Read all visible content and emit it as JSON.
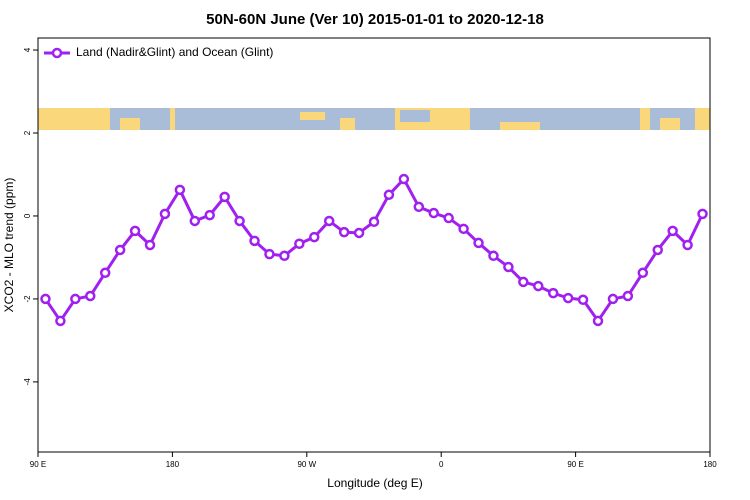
{
  "chart_data": {
    "type": "line",
    "title": "50N-60N June (Ver 10)   2015-01-01 to 2020-12-18",
    "x_label": "Longitude (deg E)",
    "y_label": "XCO2 - MLO trend (ppm)",
    "x": [
      95,
      105,
      115,
      125,
      135,
      145,
      155,
      165,
      175,
      185,
      195,
      205,
      215,
      225,
      235,
      245,
      255,
      265,
      275,
      285,
      295,
      305,
      315,
      325,
      335,
      345,
      355,
      365,
      375,
      385,
      395,
      405,
      415,
      425,
      435,
      445,
      455,
      465,
      475,
      485,
      495,
      505,
      515,
      525,
      535
    ],
    "series": [
      {
        "name": "Land (Nadir&Glint) and Ocean (Glint)",
        "color": "#a020f0",
        "values": [
          -2.0,
          -2.53,
          -2.0,
          -1.93,
          -1.37,
          -0.82,
          -0.36,
          -0.7,
          0.05,
          0.63,
          -0.12,
          0.02,
          0.46,
          -0.12,
          -0.6,
          -0.92,
          -0.96,
          -0.67,
          -0.51,
          -0.12,
          -0.39,
          -0.41,
          -0.14,
          0.51,
          0.89,
          0.22,
          0.07,
          -0.05,
          -0.31,
          -0.65,
          -0.96,
          -1.23,
          -1.59,
          -1.69,
          -1.86,
          -1.98,
          -2.02,
          -2.53,
          -2.0,
          -1.93,
          -1.37,
          -0.82,
          -0.36,
          -0.7,
          0.05
        ]
      }
    ],
    "xlim": [
      90,
      540
    ],
    "xticks": [
      {
        "value": 90,
        "label": "90 E"
      },
      180,
      {
        "value": 270,
        "label": "90 W"
      },
      {
        "value": 360,
        "label": "0"
      },
      {
        "value": 450,
        "label": "90 E"
      },
      {
        "value": 540,
        "label": "180"
      }
    ],
    "ylim": [
      -5.69,
      4.29
    ],
    "yticks": [
      -4,
      -2,
      0,
      2,
      4
    ],
    "legend": "top-left"
  }
}
